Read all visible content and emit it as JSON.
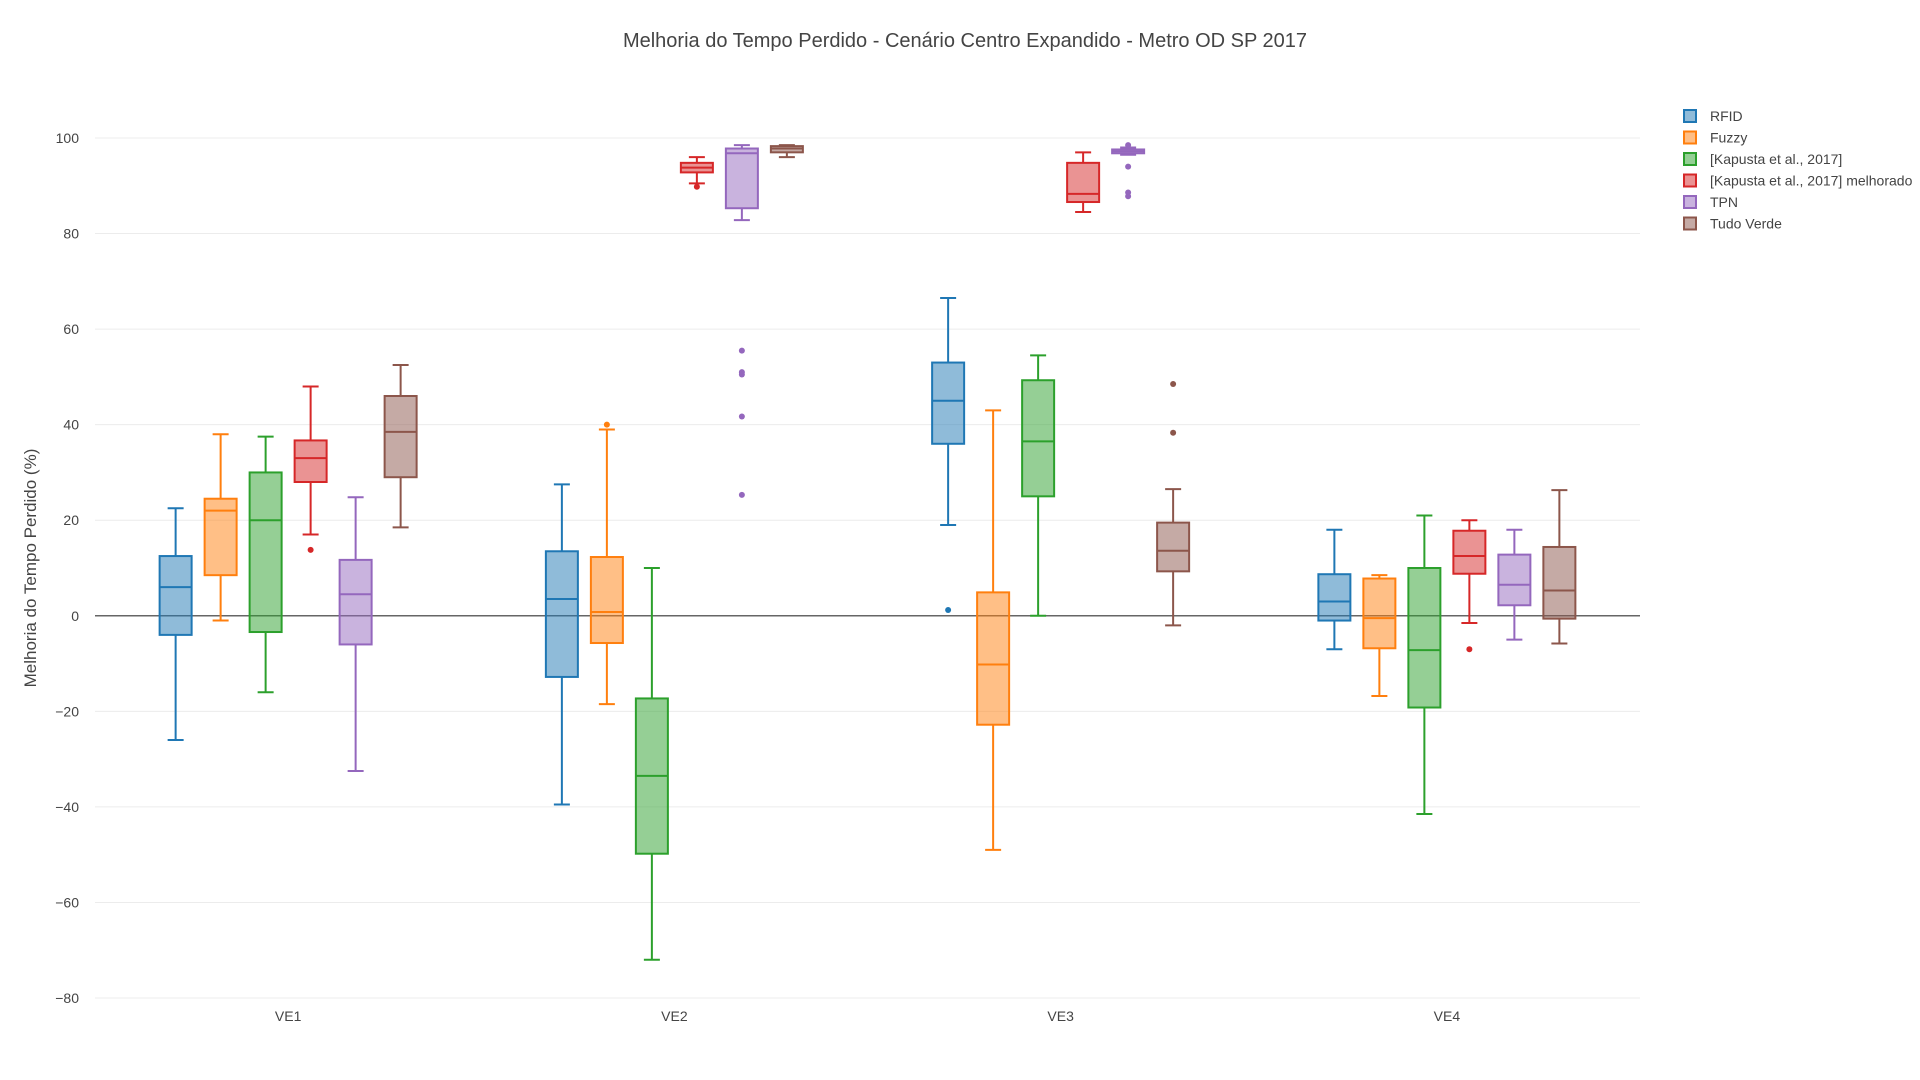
{
  "chart_data": {
    "type": "box",
    "title": "Melhoria do Tempo Perdido - Cenário Centro Expandido - Metro OD SP 2017",
    "xlabel": "",
    "ylabel": "Melhoria do Tempo Perdido (%)",
    "ylim": [
      -82,
      112
    ],
    "yticks": [
      100,
      80,
      60,
      40,
      20,
      0,
      -20,
      -40,
      -60,
      -80
    ],
    "ytick_labels": [
      "100",
      "80",
      "60",
      "40",
      "20",
      "0",
      "−20",
      "−40",
      "−60",
      "−80"
    ],
    "categories": [
      "VE1",
      "VE2",
      "VE3",
      "VE4"
    ],
    "grid": true,
    "legend_position": "top-right",
    "series": [
      {
        "name": "RFID",
        "color": "#1f77b4",
        "boxes": [
          {
            "min": -26,
            "q1": -4,
            "median": 6,
            "q3": 12.5,
            "max": 22.5,
            "outliers": []
          },
          {
            "min": -39.5,
            "q1": -12.8,
            "median": 3.5,
            "q3": 13.5,
            "max": 27.5,
            "outliers": []
          },
          {
            "min": 19,
            "q1": 36,
            "median": 45,
            "q3": 53,
            "max": 66.5,
            "outliers": [
              1.2
            ]
          },
          {
            "min": -7,
            "q1": -1,
            "median": 3,
            "q3": 8.7,
            "max": 18,
            "outliers": []
          }
        ]
      },
      {
        "name": "Fuzzy",
        "color": "#ff7f0e",
        "boxes": [
          {
            "min": -1,
            "q1": 8.5,
            "median": 22,
            "q3": 24.5,
            "max": 38,
            "outliers": []
          },
          {
            "min": -18.5,
            "q1": -5.7,
            "median": 0.8,
            "q3": 12.3,
            "max": 39,
            "outliers": [
              40
            ]
          },
          {
            "min": -49,
            "q1": -22.8,
            "median": -10.2,
            "q3": 4.9,
            "max": 43,
            "outliers": []
          },
          {
            "min": -16.8,
            "q1": -6.8,
            "median": -0.5,
            "q3": 7.8,
            "max": 8.5,
            "outliers": []
          }
        ]
      },
      {
        "name": "[Kapusta et al., 2017]",
        "color": "#2ca02c",
        "boxes": [
          {
            "min": -16,
            "q1": -3.4,
            "median": 20,
            "q3": 30,
            "max": 37.5,
            "outliers": []
          },
          {
            "min": -72,
            "q1": -49.8,
            "median": -33.5,
            "q3": -17.3,
            "max": 10,
            "outliers": []
          },
          {
            "min": 0,
            "q1": 25,
            "median": 36.5,
            "q3": 49.3,
            "max": 54.5,
            "outliers": []
          },
          {
            "min": -41.5,
            "q1": -19.2,
            "median": -7.2,
            "q3": 10,
            "max": 21,
            "outliers": []
          }
        ]
      },
      {
        "name": "[Kapusta et al., 2017] melhorado",
        "color": "#d62728",
        "boxes": [
          {
            "min": 17,
            "q1": 28,
            "median": 33,
            "q3": 36.7,
            "max": 48,
            "outliers": [
              13.8
            ]
          },
          {
            "min": 90.5,
            "q1": 92.8,
            "median": 93.8,
            "q3": 94.8,
            "max": 96,
            "outliers": [
              89.8
            ]
          },
          {
            "min": 84.5,
            "q1": 86.6,
            "median": 88.3,
            "q3": 94.8,
            "max": 97,
            "outliers": []
          },
          {
            "min": -1.5,
            "q1": 8.8,
            "median": 12.5,
            "q3": 17.8,
            "max": 20,
            "outliers": [
              -7
            ]
          }
        ]
      },
      {
        "name": "TPN",
        "color": "#9467bd",
        "boxes": [
          {
            "min": -32.5,
            "q1": -6,
            "median": 4.5,
            "q3": 11.7,
            "max": 24.8,
            "outliers": []
          },
          {
            "min": 82.8,
            "q1": 85.3,
            "median": 96.8,
            "q3": 97.8,
            "max": 98.5,
            "outliers": [
              55.5,
              51,
              50.5,
              41.7,
              25.3
            ]
          },
          {
            "min": 96.5,
            "q1": 96.8,
            "median": 97.2,
            "q3": 97.6,
            "max": 98,
            "outliers": [
              98.5,
              94,
              88.6,
              87.8
            ]
          },
          {
            "min": -5,
            "q1": 2.2,
            "median": 6.5,
            "q3": 12.8,
            "max": 18,
            "outliers": []
          }
        ]
      },
      {
        "name": "Tudo Verde",
        "color": "#8c564b",
        "boxes": [
          {
            "min": 18.5,
            "q1": 29,
            "median": 38.5,
            "q3": 46,
            "max": 52.5,
            "outliers": []
          },
          {
            "min": 96,
            "q1": 97,
            "median": 97.8,
            "q3": 98.3,
            "max": 98.5,
            "outliers": []
          },
          {
            "min": -2,
            "q1": 9.3,
            "median": 13.6,
            "q3": 19.5,
            "max": 26.5,
            "outliers": [
              48.5,
              38.3
            ]
          },
          {
            "min": -5.8,
            "q1": -0.6,
            "median": 5.3,
            "q3": 14.4,
            "max": 26.3,
            "outliers": []
          }
        ]
      }
    ]
  }
}
